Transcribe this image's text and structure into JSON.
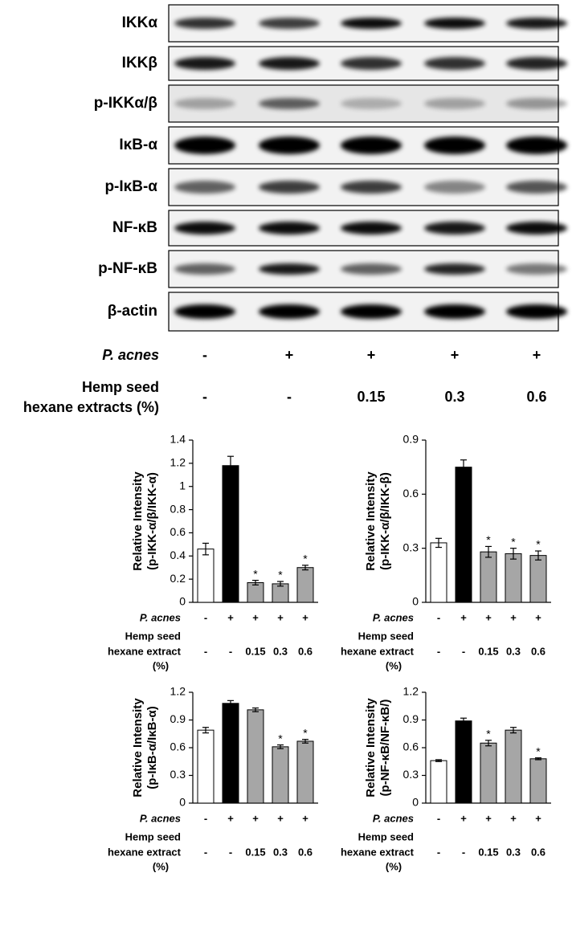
{
  "blot": {
    "rows": [
      "IKKα",
      "IKKβ",
      "p-IKKα/β",
      "IκB-α",
      "p-IκB-α",
      "NF-κB",
      "p-NF-κB",
      "β-actin"
    ],
    "treatments": [
      {
        "label": [
          "P. acnes"
        ],
        "values": [
          "-",
          "+",
          "+",
          "+",
          "+"
        ]
      },
      {
        "label": [
          "Hemp seed",
          "hexane extracts (%)"
        ],
        "values": [
          "-",
          "-",
          "0.15",
          "0.3",
          "0.6"
        ]
      }
    ]
  },
  "chart_data": [
    {
      "type": "bar",
      "ylabel": [
        "Relative Intensity",
        "(p-IKK-α/β/IKK-α)"
      ],
      "values": [
        0.46,
        1.18,
        0.17,
        0.16,
        0.3
      ],
      "errors": [
        0.05,
        0.08,
        0.02,
        0.02,
        0.02
      ],
      "markers": [
        null,
        null,
        "*",
        "*",
        "*"
      ],
      "colors": [
        "#ffffff",
        "#000000",
        "#a6a6a6",
        "#a6a6a6",
        "#a6a6a6"
      ],
      "ylim": [
        0,
        1.4
      ],
      "yticks": [
        0,
        0.2,
        0.4,
        0.6,
        0.8,
        1,
        1.2,
        1.4
      ],
      "rows": [
        {
          "label": [
            "P. acnes"
          ],
          "values": [
            "-",
            "+",
            "+",
            "+",
            "+"
          ]
        },
        {
          "label": [
            "Hemp seed",
            "hexane extract",
            "(%)"
          ],
          "values": [
            "-",
            "-",
            "0.15",
            "0.3",
            "0.6"
          ]
        }
      ]
    },
    {
      "type": "bar",
      "ylabel": [
        "Relative Intensity",
        "(p-IKK-α/β/IKK-β)"
      ],
      "values": [
        0.33,
        0.75,
        0.28,
        0.27,
        0.26
      ],
      "errors": [
        0.025,
        0.04,
        0.03,
        0.03,
        0.025
      ],
      "markers": [
        null,
        null,
        "*",
        "*",
        "*"
      ],
      "colors": [
        "#ffffff",
        "#000000",
        "#a6a6a6",
        "#a6a6a6",
        "#a6a6a6"
      ],
      "ylim": [
        0,
        0.9
      ],
      "yticks": [
        0,
        0.3,
        0.6,
        0.9
      ],
      "rows": [
        {
          "label": [
            "P. acnes"
          ],
          "values": [
            "-",
            "+",
            "+",
            "+",
            "+"
          ]
        },
        {
          "label": [
            "Hemp seed",
            "hexane extract",
            "(%)"
          ],
          "values": [
            "-",
            "-",
            "0.15",
            "0.3",
            "0.6"
          ]
        }
      ]
    },
    {
      "type": "bar",
      "ylabel": [
        "Relative Intensity",
        "(p-IκB-α/IκB-α)"
      ],
      "values": [
        0.79,
        1.08,
        1.01,
        0.61,
        0.67
      ],
      "errors": [
        0.03,
        0.03,
        0.02,
        0.02,
        0.02
      ],
      "markers": [
        null,
        null,
        null,
        "*",
        "*"
      ],
      "colors": [
        "#ffffff",
        "#000000",
        "#a6a6a6",
        "#a6a6a6",
        "#a6a6a6"
      ],
      "ylim": [
        0,
        1.2
      ],
      "yticks": [
        0,
        0.3,
        0.6,
        0.9,
        1.2
      ],
      "rows": [
        {
          "label": [
            "P. acnes"
          ],
          "values": [
            "-",
            "+",
            "+",
            "+",
            "+"
          ]
        },
        {
          "label": [
            "Hemp seed",
            "hexane extract",
            "(%)"
          ],
          "values": [
            "-",
            "-",
            "0.15",
            "0.3",
            "0.6"
          ]
        }
      ]
    },
    {
      "type": "bar",
      "ylabel": [
        "Relative Intensity",
        "(p-NF-κB/NF-κB/)"
      ],
      "values": [
        0.46,
        0.89,
        0.65,
        0.79,
        0.48
      ],
      "errors": [
        0.01,
        0.03,
        0.03,
        0.03,
        0.01
      ],
      "markers": [
        null,
        null,
        "*",
        null,
        "*"
      ],
      "colors": [
        "#ffffff",
        "#000000",
        "#a6a6a6",
        "#a6a6a6",
        "#a6a6a6"
      ],
      "ylim": [
        0,
        1.2
      ],
      "yticks": [
        0,
        0.3,
        0.6,
        0.9,
        1.2
      ],
      "rows": [
        {
          "label": [
            "P. acnes"
          ],
          "values": [
            "-",
            "+",
            "+",
            "+",
            "+"
          ]
        },
        {
          "label": [
            "Hemp seed",
            "hexane extract",
            "(%)"
          ],
          "values": [
            "-",
            "-",
            "0.15",
            "0.3",
            "0.6"
          ]
        }
      ]
    }
  ]
}
